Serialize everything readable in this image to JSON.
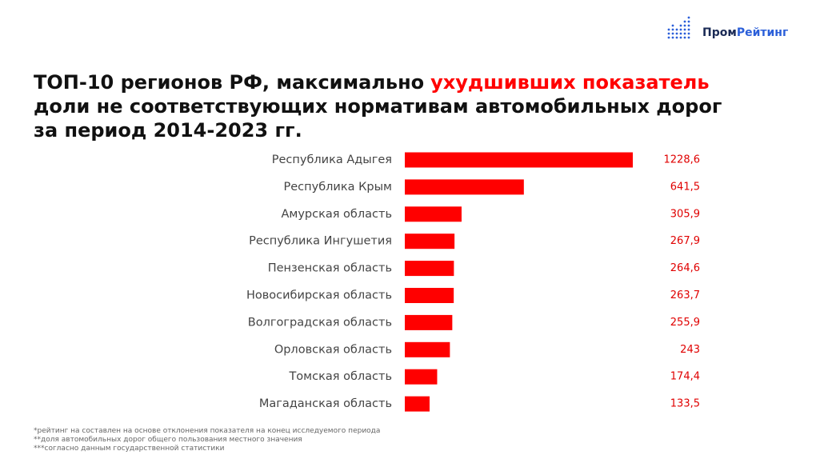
{
  "logo": [
    "Пром",
    "Рейтинг"
  ],
  "chart_data": {
    "type": "bar",
    "orientation": "horizontal",
    "title_lines": [
      [
        "ТОП-10 регионов РФ, максимально",
        "ухудшивших показатель"
      ],
      [
        "доли не соответствующих нормативам автомобильных дорог"
      ],
      [
        "за период 2014-2023 гг."
      ]
    ],
    "categories": [
      "Республика Адыгея",
      "Республика Крым",
      "Амурская область",
      "Республика Ингушетия",
      "Пензенская область",
      "Новосибирская область",
      "Волгоградская область",
      "Орловская область",
      "Томская область",
      "Магаданская область"
    ],
    "values": [
      1228.6,
      641.5,
      305.9,
      267.9,
      264.6,
      263.7,
      255.9,
      243,
      174.4,
      133.5
    ],
    "value_labels": [
      "1228,6",
      "641,5",
      "305,9",
      "267,9",
      "264,6",
      "263,7",
      "255,9",
      "243",
      "174,4",
      "133,5"
    ],
    "color": "#ff0000",
    "footnotes": [
      "*рейтинг на составлен на основе отклонения показателя на конец исследуемого периода",
      "**доля автомобильных дорог общего пользования местного значения",
      "***согласно данным государственной статистики"
    ]
  }
}
